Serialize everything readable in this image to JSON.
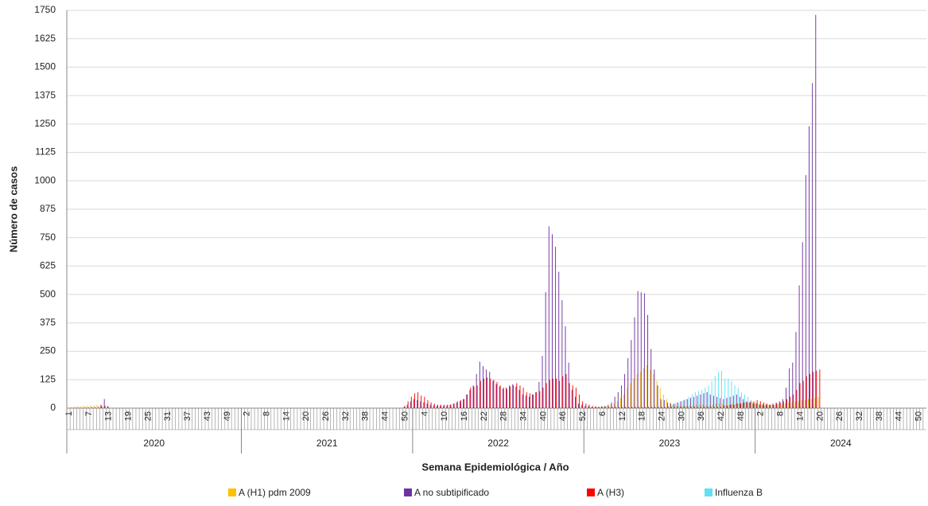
{
  "chart_data": {
    "type": "bar",
    "ylabel": "Número de casos",
    "xlabel": "Semana Epidemiológica / Año",
    "ylim": [
      0,
      1750
    ],
    "yticks": [
      0,
      125,
      250,
      375,
      500,
      625,
      750,
      875,
      1000,
      1125,
      1250,
      1375,
      1500,
      1625,
      1750
    ],
    "grid": true,
    "years": [
      {
        "label": "2020",
        "weeks": [
          "1",
          null,
          null,
          null,
          null,
          null,
          "7",
          null,
          null,
          null,
          null,
          null,
          "13",
          null,
          null,
          null,
          null,
          null,
          "19",
          null,
          null,
          null,
          null,
          null,
          "25",
          null,
          null,
          null,
          null,
          null,
          "31",
          null,
          null,
          null,
          null,
          null,
          "37",
          null,
          null,
          null,
          null,
          null,
          "43",
          null,
          null,
          null,
          null,
          null,
          "49",
          null,
          null,
          null,
          null
        ]
      },
      {
        "label": "2021",
        "weeks": [
          null,
          "2",
          null,
          null,
          null,
          null,
          null,
          "8",
          null,
          null,
          null,
          null,
          null,
          "14",
          null,
          null,
          null,
          null,
          null,
          "20",
          null,
          null,
          null,
          null,
          null,
          "26",
          null,
          null,
          null,
          null,
          null,
          "32",
          null,
          null,
          null,
          null,
          null,
          "38",
          null,
          null,
          null,
          null,
          null,
          "44",
          null,
          null,
          null,
          null,
          null,
          "50",
          null,
          null
        ]
      },
      {
        "label": "2022",
        "weeks": [
          null,
          null,
          null,
          "4",
          null,
          null,
          null,
          null,
          null,
          "10",
          null,
          null,
          null,
          null,
          null,
          "16",
          null,
          null,
          null,
          null,
          null,
          "22",
          null,
          null,
          null,
          null,
          null,
          "28",
          null,
          null,
          null,
          null,
          null,
          "34",
          null,
          null,
          null,
          null,
          null,
          "40",
          null,
          null,
          null,
          null,
          null,
          "46",
          null,
          null,
          null,
          null,
          null,
          "52"
        ]
      },
      {
        "label": "2023",
        "weeks": [
          null,
          null,
          null,
          null,
          null,
          "6",
          null,
          null,
          null,
          null,
          null,
          "12",
          null,
          null,
          null,
          null,
          null,
          "18",
          null,
          null,
          null,
          null,
          null,
          "24",
          null,
          null,
          null,
          null,
          null,
          "30",
          null,
          null,
          null,
          null,
          null,
          "36",
          null,
          null,
          null,
          null,
          null,
          "42",
          null,
          null,
          null,
          null,
          null,
          "48",
          null,
          null,
          null,
          null
        ]
      },
      {
        "label": "2024",
        "weeks": [
          null,
          "2",
          null,
          null,
          null,
          null,
          null,
          "8",
          null,
          null,
          null,
          null,
          null,
          "14",
          null,
          null,
          null,
          null,
          null,
          "20",
          null,
          null,
          null,
          null,
          null,
          "26",
          null,
          null,
          null,
          null,
          null,
          "32",
          null,
          null,
          null,
          null,
          null,
          "38",
          null,
          null,
          null,
          null,
          null,
          "44",
          null,
          null,
          null,
          null,
          null,
          "50",
          null,
          null
        ]
      }
    ],
    "series": [
      {
        "name": "A (H1) pdm 2009",
        "color": "#FFC000",
        "values": [
          3,
          5,
          6,
          8,
          8,
          10,
          10,
          12,
          12,
          14,
          10,
          5,
          0,
          0,
          0,
          0,
          0,
          0,
          0,
          0,
          0,
          0,
          0,
          0,
          0,
          0,
          0,
          0,
          0,
          0,
          0,
          0,
          0,
          0,
          0,
          0,
          0,
          0,
          0,
          0,
          0,
          0,
          0,
          0,
          0,
          0,
          0,
          0,
          0,
          0,
          0,
          0,
          0,
          0,
          0,
          0,
          0,
          0,
          0,
          0,
          0,
          0,
          0,
          0,
          0,
          0,
          0,
          0,
          0,
          0,
          0,
          0,
          0,
          0,
          0,
          0,
          0,
          0,
          0,
          0,
          0,
          0,
          0,
          0,
          0,
          0,
          0,
          0,
          0,
          0,
          0,
          0,
          0,
          0,
          0,
          0,
          0,
          0,
          0,
          0,
          0,
          0,
          0,
          0,
          0,
          0,
          0,
          0,
          0,
          0,
          0,
          0,
          0,
          0,
          0,
          0,
          0,
          0,
          0,
          0,
          0,
          0,
          0,
          0,
          0,
          0,
          0,
          0,
          0,
          0,
          0,
          0,
          0,
          0,
          0,
          0,
          0,
          0,
          0,
          0,
          0,
          0,
          0,
          0,
          0,
          2,
          3,
          3,
          4,
          5,
          5,
          5,
          4,
          3,
          3,
          2,
          2,
          2,
          2,
          3,
          3,
          5,
          5,
          8,
          10,
          15,
          20,
          30,
          45,
          60,
          90,
          110,
          130,
          150,
          160,
          175,
          190,
          170,
          150,
          120,
          90,
          60,
          40,
          25,
          15,
          10,
          10,
          10,
          10,
          12,
          12,
          15,
          15,
          15,
          12,
          12,
          15,
          20,
          20,
          18,
          15,
          15,
          18,
          20,
          20,
          22,
          25,
          25,
          25,
          25,
          22,
          20,
          18,
          15,
          15,
          15,
          18,
          20,
          20,
          25,
          25,
          30,
          30,
          35,
          35,
          40,
          40,
          45,
          50,
          0,
          0,
          0,
          0,
          0,
          0,
          0,
          0,
          0,
          0,
          0,
          0,
          0,
          0,
          0,
          0,
          0,
          0,
          0,
          0,
          0,
          0,
          0,
          0,
          0,
          0,
          0,
          0,
          0,
          0,
          0,
          0
        ]
      },
      {
        "name": "A no subtipificado",
        "color": "#7030A0",
        "values": [
          0,
          0,
          0,
          0,
          0,
          0,
          0,
          0,
          0,
          0,
          15,
          40,
          10,
          0,
          0,
          0,
          0,
          0,
          0,
          0,
          0,
          0,
          0,
          0,
          0,
          0,
          0,
          0,
          0,
          0,
          0,
          0,
          0,
          0,
          0,
          0,
          0,
          0,
          0,
          0,
          0,
          0,
          0,
          0,
          0,
          0,
          0,
          0,
          0,
          0,
          0,
          0,
          0,
          0,
          0,
          0,
          0,
          0,
          0,
          0,
          0,
          0,
          0,
          0,
          0,
          0,
          0,
          0,
          0,
          0,
          0,
          0,
          0,
          0,
          0,
          0,
          0,
          0,
          0,
          0,
          0,
          0,
          0,
          0,
          0,
          0,
          0,
          0,
          0,
          0,
          0,
          0,
          0,
          0,
          0,
          0,
          0,
          0,
          0,
          0,
          0,
          0,
          5,
          15,
          30,
          40,
          35,
          30,
          25,
          20,
          15,
          12,
          10,
          10,
          10,
          12,
          15,
          20,
          25,
          30,
          40,
          60,
          80,
          100,
          150,
          205,
          185,
          170,
          160,
          120,
          105,
          95,
          85,
          90,
          100,
          105,
          95,
          80,
          60,
          55,
          50,
          60,
          70,
          115,
          230,
          510,
          800,
          765,
          710,
          600,
          475,
          360,
          200,
          80,
          50,
          20,
          15,
          10,
          8,
          5,
          5,
          5,
          8,
          10,
          15,
          25,
          50,
          70,
          100,
          150,
          220,
          300,
          400,
          515,
          510,
          505,
          410,
          260,
          170,
          100,
          40,
          35,
          25,
          20,
          20,
          25,
          30,
          35,
          40,
          45,
          50,
          55,
          60,
          65,
          70,
          60,
          55,
          50,
          45,
          40,
          45,
          50,
          55,
          60,
          50,
          40,
          30,
          25,
          20,
          20,
          15,
          15,
          15,
          15,
          20,
          25,
          30,
          40,
          90,
          175,
          200,
          335,
          540,
          730,
          1025,
          1240,
          1430,
          1730,
          0,
          0,
          0,
          0,
          0,
          0,
          0,
          0,
          0,
          0,
          0,
          0,
          0,
          0,
          0,
          0,
          0,
          0,
          0,
          0,
          0,
          0,
          0,
          0,
          0,
          0,
          0,
          0,
          0,
          0,
          0,
          0
        ]
      },
      {
        "name": "A (H3)",
        "color": "#FF0000",
        "values": [
          2,
          2,
          3,
          3,
          3,
          4,
          4,
          5,
          5,
          6,
          8,
          10,
          5,
          0,
          0,
          0,
          0,
          0,
          0,
          0,
          0,
          0,
          0,
          0,
          0,
          0,
          0,
          0,
          0,
          0,
          0,
          0,
          0,
          0,
          0,
          0,
          0,
          0,
          0,
          0,
          0,
          0,
          0,
          0,
          0,
          0,
          0,
          0,
          0,
          0,
          0,
          0,
          0,
          0,
          0,
          0,
          0,
          0,
          0,
          0,
          0,
          0,
          0,
          0,
          0,
          0,
          0,
          0,
          0,
          0,
          0,
          0,
          0,
          0,
          0,
          0,
          0,
          0,
          0,
          0,
          0,
          0,
          0,
          0,
          0,
          0,
          0,
          0,
          0,
          0,
          0,
          0,
          0,
          0,
          0,
          0,
          0,
          0,
          0,
          0,
          0,
          0,
          10,
          30,
          50,
          65,
          70,
          55,
          50,
          35,
          25,
          20,
          15,
          15,
          15,
          15,
          15,
          20,
          30,
          35,
          40,
          60,
          90,
          95,
          100,
          120,
          130,
          135,
          130,
          125,
          115,
          100,
          90,
          85,
          95,
          100,
          110,
          100,
          90,
          70,
          65,
          60,
          70,
          75,
          90,
          110,
          125,
          130,
          130,
          120,
          140,
          150,
          110,
          100,
          90,
          60,
          30,
          20,
          15,
          10,
          8,
          5,
          5,
          5,
          5,
          5,
          5,
          5,
          5,
          5,
          5,
          5,
          5,
          5,
          5,
          5,
          5,
          5,
          5,
          5,
          5,
          5,
          5,
          5,
          5,
          5,
          5,
          5,
          5,
          5,
          5,
          5,
          5,
          5,
          5,
          5,
          5,
          5,
          5,
          10,
          10,
          15,
          15,
          20,
          20,
          25,
          25,
          30,
          30,
          35,
          30,
          25,
          20,
          15,
          15,
          20,
          25,
          30,
          40,
          50,
          60,
          80,
          110,
          120,
          140,
          150,
          160,
          165,
          170,
          0,
          0,
          0,
          0,
          0,
          0,
          0,
          0,
          0,
          0,
          0,
          0,
          0,
          0,
          0,
          0,
          0,
          0,
          0,
          0,
          0,
          0,
          0,
          0,
          0,
          0,
          0,
          0,
          0,
          0,
          0,
          0
        ]
      },
      {
        "name": "Influenza  B",
        "color": "#5DE2F5",
        "values": [
          2,
          2,
          2,
          2,
          2,
          2,
          2,
          2,
          2,
          2,
          2,
          2,
          0,
          0,
          0,
          0,
          0,
          0,
          0,
          0,
          0,
          0,
          0,
          0,
          0,
          0,
          0,
          0,
          0,
          0,
          0,
          0,
          0,
          0,
          0,
          0,
          0,
          0,
          0,
          0,
          0,
          0,
          0,
          0,
          0,
          0,
          0,
          0,
          0,
          0,
          0,
          0,
          0,
          0,
          0,
          0,
          0,
          0,
          0,
          0,
          0,
          0,
          0,
          0,
          0,
          0,
          0,
          0,
          0,
          0,
          0,
          0,
          0,
          0,
          0,
          0,
          0,
          0,
          0,
          0,
          0,
          0,
          0,
          0,
          0,
          0,
          0,
          0,
          0,
          0,
          0,
          0,
          0,
          0,
          0,
          0,
          0,
          0,
          0,
          0,
          0,
          0,
          0,
          0,
          0,
          0,
          0,
          0,
          0,
          0,
          0,
          0,
          0,
          0,
          0,
          0,
          0,
          0,
          0,
          0,
          0,
          0,
          0,
          0,
          0,
          0,
          0,
          0,
          0,
          0,
          0,
          0,
          0,
          0,
          0,
          0,
          0,
          0,
          0,
          0,
          0,
          0,
          0,
          0,
          0,
          2,
          2,
          2,
          2,
          3,
          3,
          3,
          3,
          4,
          5,
          5,
          5,
          5,
          5,
          5,
          5,
          5,
          5,
          5,
          5,
          5,
          5,
          5,
          5,
          5,
          5,
          5,
          5,
          5,
          5,
          5,
          5,
          5,
          5,
          5,
          5,
          5,
          10,
          15,
          20,
          25,
          30,
          40,
          50,
          60,
          70,
          75,
          80,
          90,
          100,
          120,
          140,
          160,
          165,
          130,
          130,
          120,
          100,
          90,
          70,
          60,
          50,
          35,
          20,
          15,
          12,
          10,
          8,
          8,
          6,
          6,
          5,
          5,
          5,
          5,
          5,
          5,
          5,
          5,
          5,
          5,
          5,
          5,
          5,
          0,
          0,
          0,
          0,
          0,
          0,
          0,
          0,
          0,
          0,
          0,
          0,
          0,
          0,
          0,
          0,
          0,
          0,
          0,
          0,
          0,
          0,
          0,
          0,
          0,
          0,
          0,
          0,
          0,
          0,
          0,
          0
        ]
      }
    ]
  }
}
